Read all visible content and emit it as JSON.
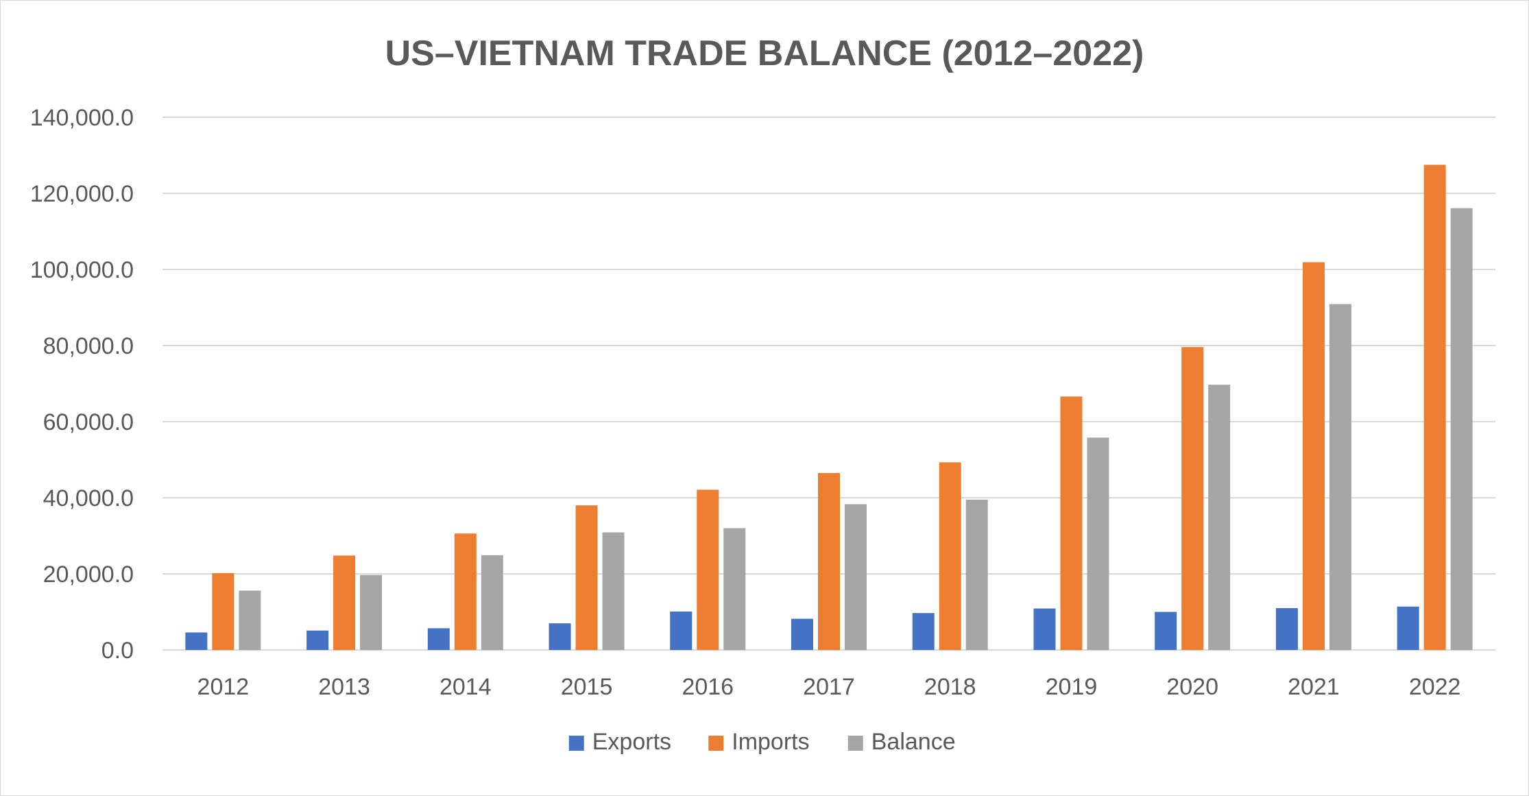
{
  "chart_data": {
    "type": "bar",
    "title": "US–VIETNAM TRADE BALANCE (2012–2022)",
    "xlabel": "",
    "ylabel": "",
    "categories": [
      "2012",
      "2013",
      "2014",
      "2015",
      "2016",
      "2017",
      "2018",
      "2019",
      "2020",
      "2021",
      "2022"
    ],
    "series": [
      {
        "name": "Exports",
        "color": "#4472c4",
        "values": [
          4600,
          5100,
          5700,
          7000,
          10100,
          8200,
          9700,
          10900,
          10000,
          11000,
          11400
        ]
      },
      {
        "name": "Imports",
        "color": "#ed7d31",
        "values": [
          20200,
          24800,
          30600,
          38000,
          42100,
          46500,
          49300,
          66600,
          79600,
          101900,
          127500
        ]
      },
      {
        "name": "Balance",
        "color": "#a5a5a5",
        "values": [
          15600,
          19700,
          24900,
          30900,
          32000,
          38300,
          39500,
          55800,
          69700,
          90900,
          116100
        ]
      }
    ],
    "ylim": [
      0,
      140000
    ],
    "yticks": [
      0,
      20000,
      40000,
      60000,
      80000,
      100000,
      120000,
      140000
    ],
    "ytick_labels": [
      "0.0",
      "20,000.0",
      "40,000.0",
      "60,000.0",
      "80,000.0",
      "100,000.0",
      "120,000.0",
      "140,000.0"
    ],
    "grid": true,
    "legend_position": "bottom"
  }
}
